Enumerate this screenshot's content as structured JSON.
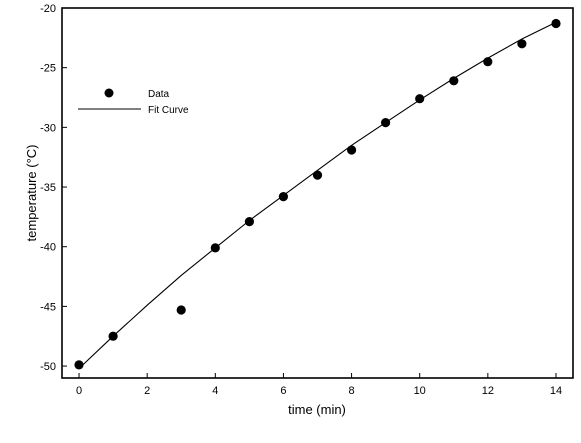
{
  "chart_data": {
    "type": "scatter",
    "xlabel": "time (min)",
    "ylabel": "temperature (°C)",
    "xlim": [
      -0.5,
      14.5
    ],
    "ylim": [
      -51,
      -20
    ],
    "x_ticks": [
      0,
      2,
      4,
      6,
      8,
      10,
      12,
      14
    ],
    "y_ticks": [
      -50,
      -45,
      -40,
      -35,
      -30,
      -25,
      -20
    ],
    "x_tick_labels": [
      "0",
      "2",
      "4",
      "6",
      "8",
      "10",
      "12",
      "14"
    ],
    "y_tick_labels": [
      "-50",
      "-45",
      "-40",
      "-35",
      "-30",
      "-25",
      "-20"
    ],
    "grid": false,
    "legend_position": "top-left",
    "series": [
      {
        "name": "Data",
        "kind": "points",
        "color": "#000000",
        "x": [
          0,
          1,
          3,
          4,
          5,
          6,
          7,
          8,
          9,
          10,
          11,
          12,
          13,
          14
        ],
        "y": [
          -49.9,
          -47.5,
          -45.3,
          -40.1,
          -37.9,
          -35.8,
          -34.0,
          -31.9,
          -29.6,
          -27.6,
          -26.1,
          -24.5,
          -23.0,
          -21.3
        ]
      },
      {
        "name": "Fit Curve",
        "kind": "line",
        "color": "#000000",
        "x": [
          0,
          1,
          2,
          3,
          4,
          5,
          6,
          7,
          8,
          9,
          10,
          11,
          12,
          13,
          14
        ],
        "y": [
          -50.2,
          -47.5,
          -44.9,
          -42.4,
          -40.1,
          -37.8,
          -35.7,
          -33.6,
          -31.5,
          -29.6,
          -27.7,
          -25.9,
          -24.2,
          -22.6,
          -21.2
        ]
      }
    ]
  }
}
